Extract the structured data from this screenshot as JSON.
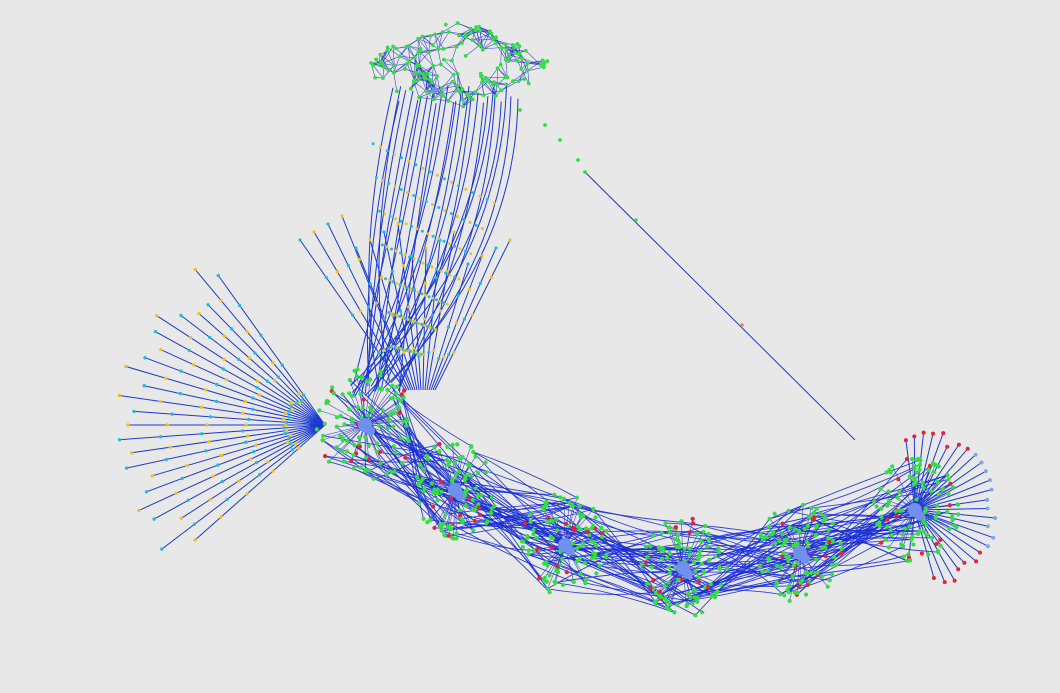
{
  "graph": {
    "background": "#e8e8e8",
    "colors": {
      "edge": "#1a2fd6",
      "node_primary": "#33dd44",
      "node_secondary": "#22bbdd",
      "node_tertiary": "#f0c020",
      "node_accent": "#e8203a",
      "node_hub": "#7090f0",
      "node_peripheral": "#7fa8e8"
    },
    "clusters": [
      {
        "id": "top",
        "kind": "mesh",
        "color": "#33dd44"
      },
      {
        "id": "c1",
        "kind": "radial",
        "color": "#33dd44",
        "hub_color": "#7090f0"
      },
      {
        "id": "c2",
        "kind": "radial",
        "color": "#33dd44",
        "hub_color": "#7090f0"
      },
      {
        "id": "c3",
        "kind": "radial",
        "color": "#33dd44",
        "hub_color": "#7090f0"
      },
      {
        "id": "c4",
        "kind": "radial",
        "color": "#33dd44",
        "hub_color": "#7090f0"
      },
      {
        "id": "c5",
        "kind": "radial",
        "color": "#33dd44",
        "hub_color": "#7090f0"
      },
      {
        "id": "c6",
        "kind": "radial",
        "color": "#33dd44",
        "hub_color": "#7090f0"
      }
    ],
    "fans": [
      {
        "id": "left-fan",
        "colors": [
          "#22bbdd",
          "#f0c020"
        ]
      },
      {
        "id": "upper-fan",
        "colors": [
          "#22bbdd",
          "#f0c020"
        ]
      },
      {
        "id": "right-fan",
        "colors": [
          "#e8203a",
          "#7fa8e8"
        ]
      }
    ]
  }
}
